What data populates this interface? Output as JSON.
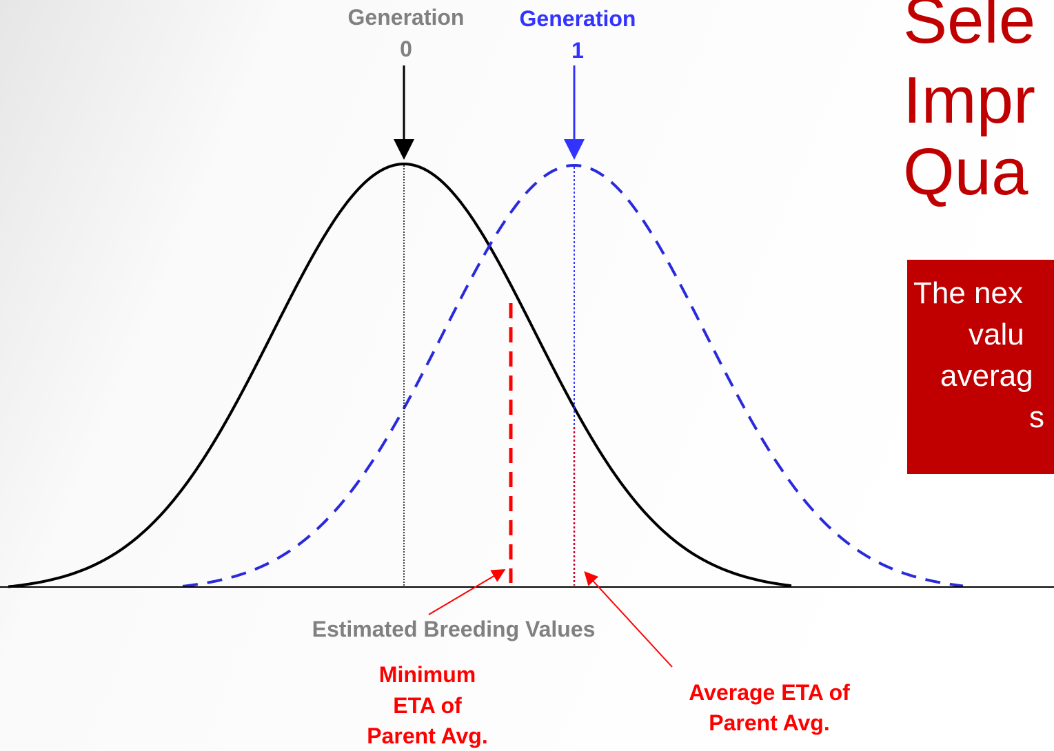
{
  "title": {
    "lines": [
      "Sele",
      "Impr",
      "Qua"
    ]
  },
  "box": {
    "lines": [
      "The nex",
      "valu",
      "averag",
      "s"
    ]
  },
  "generation0": {
    "lines": [
      "Generation",
      "0"
    ]
  },
  "generation1": {
    "lines": [
      "Generation",
      "1"
    ]
  },
  "axis_label": "Estimated Breeding Values",
  "minimum_label": {
    "lines": [
      "Minimum",
      "ETA of",
      "Parent Avg."
    ]
  },
  "average_label": {
    "lines": [
      "Average ETA of",
      "Parent Avg."
    ]
  }
}
